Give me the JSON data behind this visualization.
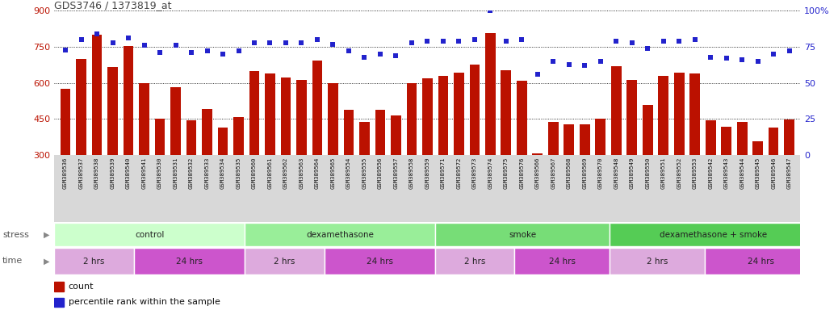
{
  "title": "GDS3746 / 1373819_at",
  "samples": [
    "GSM389536",
    "GSM389537",
    "GSM389538",
    "GSM389539",
    "GSM389540",
    "GSM389541",
    "GSM389530",
    "GSM389531",
    "GSM389532",
    "GSM389533",
    "GSM389534",
    "GSM389535",
    "GSM389560",
    "GSM389561",
    "GSM389562",
    "GSM389563",
    "GSM389564",
    "GSM389565",
    "GSM389554",
    "GSM389555",
    "GSM389556",
    "GSM389557",
    "GSM389558",
    "GSM389559",
    "GSM389571",
    "GSM389572",
    "GSM389573",
    "GSM389574",
    "GSM389575",
    "GSM389576",
    "GSM389566",
    "GSM389567",
    "GSM389568",
    "GSM389569",
    "GSM389570",
    "GSM389548",
    "GSM389549",
    "GSM389550",
    "GSM389551",
    "GSM389552",
    "GSM389553",
    "GSM389542",
    "GSM389543",
    "GSM389544",
    "GSM389545",
    "GSM389546",
    "GSM389547"
  ],
  "counts": [
    575,
    700,
    800,
    665,
    755,
    600,
    450,
    582,
    445,
    490,
    415,
    458,
    648,
    638,
    622,
    612,
    693,
    598,
    488,
    438,
    488,
    463,
    598,
    618,
    628,
    643,
    678,
    808,
    653,
    608,
    308,
    438,
    428,
    428,
    450,
    668,
    613,
    508,
    628,
    643,
    638,
    443,
    418,
    438,
    358,
    413,
    448
  ],
  "percentiles": [
    73,
    80,
    84,
    78,
    81,
    76,
    71,
    76,
    71,
    72,
    70,
    72,
    78,
    78,
    78,
    78,
    80,
    77,
    72,
    68,
    70,
    69,
    78,
    79,
    79,
    79,
    80,
    100,
    79,
    80,
    56,
    65,
    63,
    62,
    65,
    79,
    78,
    74,
    79,
    79,
    80,
    68,
    67,
    66,
    65,
    70,
    72
  ],
  "ylim_left": [
    300,
    900
  ],
  "ylim_right": [
    0,
    100
  ],
  "yticks_left": [
    300,
    450,
    600,
    750,
    900
  ],
  "yticks_right": [
    0,
    25,
    50,
    75,
    100
  ],
  "bar_color": "#bb1100",
  "dot_color": "#2222cc",
  "groups_stress": [
    {
      "label": "control",
      "start": 0,
      "end": 11,
      "color": "#ccffcc"
    },
    {
      "label": "dexamethasone",
      "start": 12,
      "end": 23,
      "color": "#99ee99"
    },
    {
      "label": "smoke",
      "start": 24,
      "end": 34,
      "color": "#77dd77"
    },
    {
      "label": "dexamethasone + smoke",
      "start": 35,
      "end": 47,
      "color": "#55cc55"
    }
  ],
  "groups_time": [
    {
      "label": "2 hrs",
      "start": 0,
      "end": 4,
      "color": "#ddaadd"
    },
    {
      "label": "24 hrs",
      "start": 5,
      "end": 11,
      "color": "#cc55cc"
    },
    {
      "label": "2 hrs",
      "start": 12,
      "end": 16,
      "color": "#ddaadd"
    },
    {
      "label": "24 hrs",
      "start": 17,
      "end": 23,
      "color": "#cc55cc"
    },
    {
      "label": "2 hrs",
      "start": 24,
      "end": 28,
      "color": "#ddaadd"
    },
    {
      "label": "24 hrs",
      "start": 29,
      "end": 34,
      "color": "#cc55cc"
    },
    {
      "label": "2 hrs",
      "start": 35,
      "end": 40,
      "color": "#ddaadd"
    },
    {
      "label": "24 hrs",
      "start": 41,
      "end": 47,
      "color": "#cc55cc"
    }
  ],
  "stress_label": "stress",
  "time_label": "time",
  "bg_color": "#ffffff",
  "grid_color": "#000000",
  "xtick_bg": "#d8d8d8"
}
